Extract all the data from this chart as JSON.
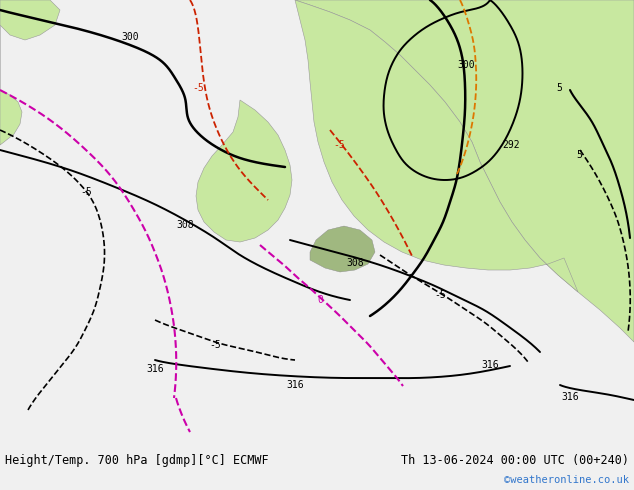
{
  "title_left": "Height/Temp. 700 hPa [gdmp][°C] ECMWF",
  "title_right": "Th 13-06-2024 00:00 UTC (00+240)",
  "watermark": "©weatheronline.co.uk",
  "footer_bg": "#f0f0f0",
  "ocean_color": "#c8c8c8",
  "land_color": "#c8e8a0",
  "land_dark_color": "#a0b880",
  "footer_text_color": "#000000",
  "watermark_color": "#3377cc",
  "title_fontsize": 8.5,
  "watermark_fontsize": 7.5,
  "label_fontsize": 7
}
